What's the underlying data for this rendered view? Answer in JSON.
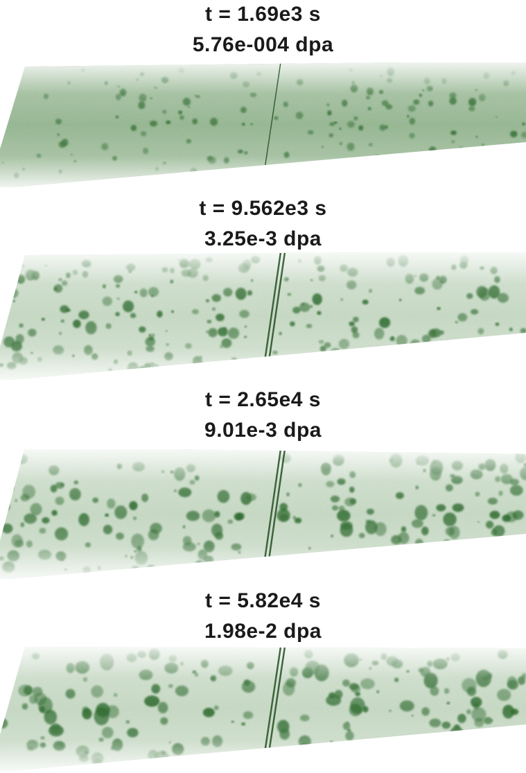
{
  "panels": [
    {
      "time_label": "t = 1.69e3 s",
      "dose_label": "5.76e-004  dpa",
      "cluster_density": 0.25,
      "cluster_size": 0.25
    },
    {
      "time_label": "t = 9.562e3 s",
      "dose_label": "3.25e-3  dpa",
      "cluster_density": 0.55,
      "cluster_size": 0.55
    },
    {
      "time_label": "t = 2.65e4 s",
      "dose_label": "9.01e-3  dpa",
      "cluster_density": 0.5,
      "cluster_size": 0.7
    },
    {
      "time_label": "t = 5.82e4 s",
      "dose_label": "1.98e-2  dpa",
      "cluster_density": 0.4,
      "cluster_size": 0.85
    }
  ],
  "colors": {
    "cluster": "#2e6b2e",
    "matrix": "#6f9a6a",
    "boundary": "#244f24",
    "text": "#1a1a1a"
  }
}
